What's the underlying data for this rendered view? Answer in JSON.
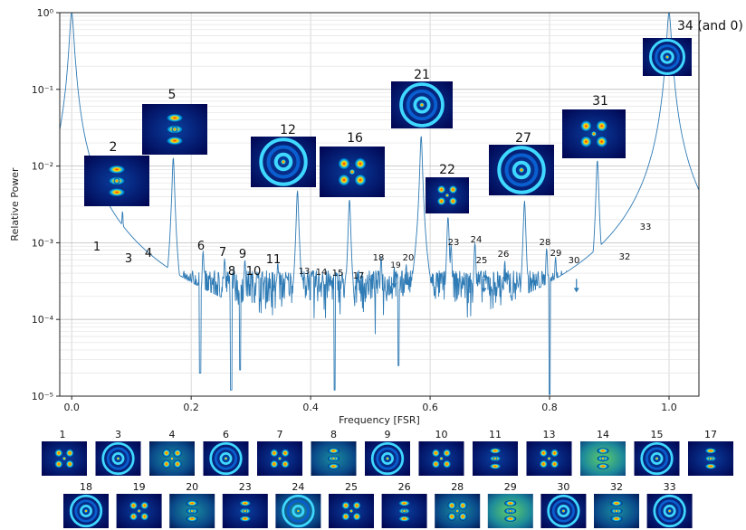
{
  "chart_data": {
    "type": "line",
    "title": "",
    "xlabel": "Frequency [FSR]",
    "ylabel": "Relative Power",
    "xlim": [
      -0.02,
      1.05
    ],
    "ylim": [
      1e-05,
      1
    ],
    "yscale": "log",
    "grid": true,
    "x_ticks": [
      {
        "value": 0.0,
        "label": "0.0"
      },
      {
        "value": 0.2,
        "label": "0.2"
      },
      {
        "value": 0.4,
        "label": "0.4"
      },
      {
        "value": 0.6,
        "label": "0.6"
      },
      {
        "value": 0.8,
        "label": "0.8"
      },
      {
        "value": 1.0,
        "label": "1.0"
      }
    ],
    "y_ticks": [
      {
        "exp": 0,
        "label": "10⁰"
      },
      {
        "exp": -1,
        "label": "10⁻¹"
      },
      {
        "exp": -2,
        "label": "10⁻²"
      },
      {
        "exp": -3,
        "label": "10⁻³"
      },
      {
        "exp": -4,
        "label": "10⁻⁴"
      },
      {
        "exp": -5,
        "label": "10⁻⁵"
      }
    ],
    "series_color": "#2f7bb5",
    "baseline_level": 0.0003,
    "main_peaks": [
      {
        "x": 0.0,
        "y": 1.0
      },
      {
        "x": 1.0,
        "y": 1.0
      }
    ],
    "dips": [
      {
        "x": 0.215,
        "y": 2e-05
      },
      {
        "x": 0.267,
        "y": 1.2e-05
      },
      {
        "x": 0.282,
        "y": 2.2e-05
      },
      {
        "x": 0.44,
        "y": 1.2e-05
      },
      {
        "x": 0.547,
        "y": 2.5e-05
      },
      {
        "x": 0.8,
        "y": 1e-05
      }
    ],
    "peaks": [
      {
        "label": "1",
        "x": 0.05,
        "y": 0.0007,
        "label_size": 13
      },
      {
        "label": "2",
        "x": 0.085,
        "y": 0.0026,
        "label_size": 14
      },
      {
        "label": "3",
        "x": 0.1,
        "y": 0.00052,
        "label_size": 13
      },
      {
        "label": "4",
        "x": 0.135,
        "y": 0.00062,
        "label_size": 13
      },
      {
        "label": "5",
        "x": 0.17,
        "y": 0.013,
        "label_size": 14
      },
      {
        "label": "6",
        "x": 0.22,
        "y": 0.00078,
        "label_size": 13
      },
      {
        "label": "7",
        "x": 0.256,
        "y": 0.00062,
        "label_size": 13
      },
      {
        "label": "8",
        "x": 0.272,
        "y": 0.00045,
        "label_size": 13
      },
      {
        "label": "9",
        "x": 0.29,
        "y": 0.0006,
        "label_size": 13
      },
      {
        "label": "10",
        "x": 0.31,
        "y": 0.00042,
        "label_size": 13
      },
      {
        "label": "11",
        "x": 0.345,
        "y": 0.00055,
        "label_size": 13
      },
      {
        "label": "12",
        "x": 0.378,
        "y": 0.0048,
        "label_size": 14
      },
      {
        "label": "13",
        "x": 0.395,
        "y": 0.00042,
        "label_size": 10
      },
      {
        "label": "14",
        "x": 0.42,
        "y": 0.0004,
        "label_size": 10
      },
      {
        "label": "15",
        "x": 0.444,
        "y": 0.0004,
        "label_size": 10
      },
      {
        "label": "16",
        "x": 0.465,
        "y": 0.0037,
        "label_size": 14
      },
      {
        "label": "17",
        "x": 0.48,
        "y": 0.00038,
        "label_size": 10
      },
      {
        "label": "18",
        "x": 0.518,
        "y": 0.00065,
        "label_size": 10
      },
      {
        "label": "19",
        "x": 0.54,
        "y": 0.00048,
        "label_size": 9
      },
      {
        "label": "20",
        "x": 0.56,
        "y": 0.00052,
        "label_size": 10
      },
      {
        "label": "21",
        "x": 0.585,
        "y": 0.025,
        "label_size": 14
      },
      {
        "label": "22",
        "x": 0.63,
        "y": 0.0022,
        "label_size": 14
      },
      {
        "label": "23",
        "x": 0.635,
        "y": 0.00095,
        "label_size": 10
      },
      {
        "label": "24",
        "x": 0.675,
        "y": 0.001,
        "label_size": 10
      },
      {
        "label": "25",
        "x": 0.69,
        "y": 0.00042,
        "label_size": 10
      },
      {
        "label": "26",
        "x": 0.725,
        "y": 0.00058,
        "label_size": 10
      },
      {
        "label": "27",
        "x": 0.758,
        "y": 0.0035,
        "label_size": 14
      },
      {
        "label": "28",
        "x": 0.795,
        "y": 0.00085,
        "label_size": 10
      },
      {
        "label": "29",
        "x": 0.81,
        "y": 0.00065,
        "label_size": 10
      },
      {
        "label": "30",
        "x": 0.845,
        "y": 0.00042,
        "label_size": 10
      },
      {
        "label": "31",
        "x": 0.88,
        "y": 0.012,
        "label_size": 14
      },
      {
        "label": "32",
        "x": 0.935,
        "y": 0.00055,
        "label_size": 10
      },
      {
        "label": "33",
        "x": 0.965,
        "y": 0.0013,
        "label_size": 10
      },
      {
        "label": "34 (and 0)",
        "x": 1.0,
        "y": 1.0,
        "label_size": 14
      }
    ],
    "arrow_labels": [
      "19",
      "20",
      "25",
      "26",
      "30"
    ],
    "inset_labels": [
      "2",
      "5",
      "12",
      "16",
      "21",
      "22",
      "27",
      "31",
      "34 (and 0)"
    ],
    "thumbnail_rows": [
      [
        "1",
        "3",
        "4",
        "6",
        "7",
        "8",
        "9",
        "10",
        "11",
        "13",
        "14",
        "15",
        "17"
      ],
      [
        "18",
        "19",
        "20",
        "23",
        "24",
        "25",
        "26",
        "28",
        "29",
        "30",
        "32",
        "33"
      ]
    ]
  }
}
